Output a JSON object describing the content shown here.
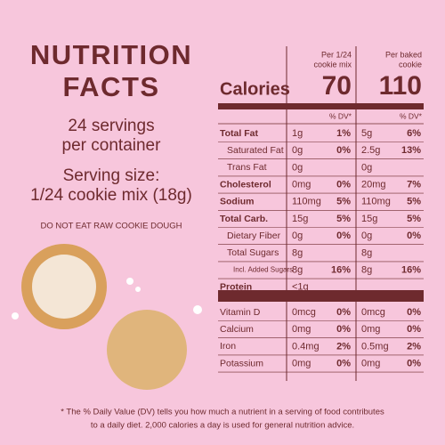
{
  "title": [
    "NUTRITION",
    "FACTS"
  ],
  "servings": [
    "24 servings",
    "per container"
  ],
  "serving_size": [
    "Serving size:",
    "1/24 cookie mix (18g)"
  ],
  "warning": "DO NOT EAT RAW COOKIE DOUGH",
  "table": {
    "calories_label": "Calories",
    "columns": [
      {
        "header": [
          "Per 1/24",
          "cookie mix"
        ],
        "calories": "70",
        "dv_header": "% DV*"
      },
      {
        "header": [
          "Per baked",
          "cookie"
        ],
        "calories": "110",
        "dv_header": "% DV*"
      }
    ],
    "rows": [
      [
        "Total Fat",
        "1g",
        "1%",
        "5g",
        "6%"
      ],
      [
        "Saturated Fat",
        "0g",
        "0%",
        "2.5g",
        "13%"
      ],
      [
        "Trans Fat",
        "0g",
        null,
        "0g",
        null
      ],
      [
        "Cholesterol",
        "0mg",
        "0%",
        "20mg",
        "7%"
      ],
      [
        "Sodium",
        "110mg",
        "5%",
        "110mg",
        "5%"
      ],
      [
        "Total Carb.",
        "15g",
        "5%",
        "15g",
        "5%"
      ],
      [
        "Dietary Fiber",
        "0g",
        "0%",
        "0g",
        "0%"
      ],
      [
        "Total Sugars",
        "8g",
        null,
        "8g",
        null
      ],
      [
        "Incl. Added Sugars",
        "8g",
        "16%",
        "8g",
        "16%"
      ],
      [
        "Protein",
        "<1g",
        null,
        null,
        null
      ],
      [
        "Vitamin D",
        "0mcg",
        "0%",
        "0mcg",
        "0%"
      ],
      [
        "Calcium",
        "0mg",
        "0%",
        "0mg",
        "0%"
      ],
      [
        "Iron",
        "0.4mg",
        "2%",
        "0.5mg",
        "2%"
      ],
      [
        "Potassium",
        "0mg",
        "0%",
        "0mg",
        "0%"
      ]
    ]
  },
  "footnote": [
    "* The % Daily Value (DV) tells you how much a nutrient in a serving of food contributes",
    "to a daily diet. 2,000 calories a day is used for general nutrition advice."
  ]
}
